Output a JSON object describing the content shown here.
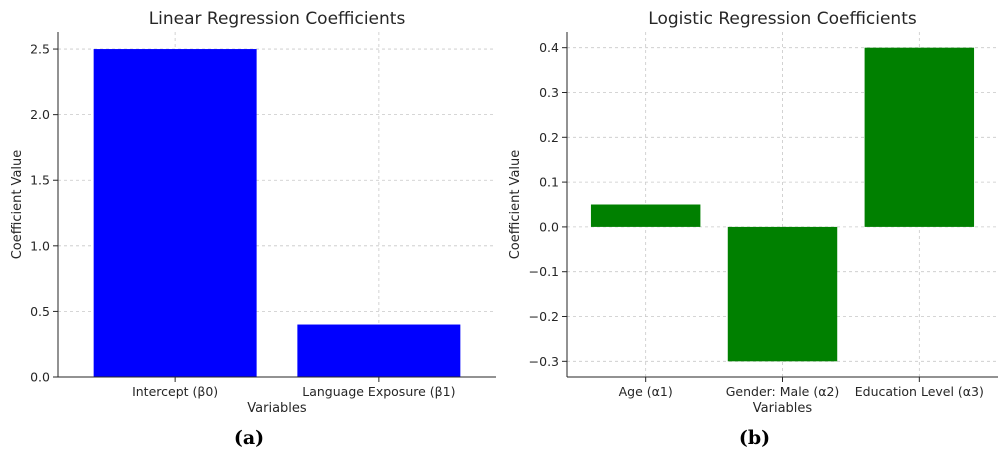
{
  "chart_data": [
    {
      "type": "bar",
      "title": "Linear Regression Coefficients",
      "xlabel": "Variables",
      "ylabel": "Coefficient Value",
      "categories": [
        "Intercept (β0)",
        "Language Exposure (β1)"
      ],
      "values": [
        2.5,
        0.4
      ],
      "ylim": [
        0,
        2.63
      ],
      "yticks": [
        0.0,
        0.5,
        1.0,
        1.5,
        2.0,
        2.5
      ],
      "ytick_labels": [
        "0.0",
        "0.5",
        "1.0",
        "1.5",
        "2.0",
        "2.5"
      ],
      "bar_color": "#0000ff",
      "grid": true,
      "panel_label": "(a)"
    },
    {
      "type": "bar",
      "title": "Logistic Regression Coefficients",
      "xlabel": "Variables",
      "ylabel": "Coefficient Value",
      "categories": [
        "Age (α1)",
        "Gender: Male (α2)",
        "Education Level (α3)"
      ],
      "values": [
        0.05,
        -0.3,
        0.4
      ],
      "ylim": [
        -0.335,
        0.435
      ],
      "yticks": [
        -0.3,
        -0.2,
        -0.1,
        0.0,
        0.1,
        0.2,
        0.3,
        0.4
      ],
      "ytick_labels": [
        "−0.3",
        "−0.2",
        "−0.1",
        "0.0",
        "0.1",
        "0.2",
        "0.3",
        "0.4"
      ],
      "bar_color": "#008000",
      "grid": true,
      "panel_label": "(b)"
    }
  ]
}
